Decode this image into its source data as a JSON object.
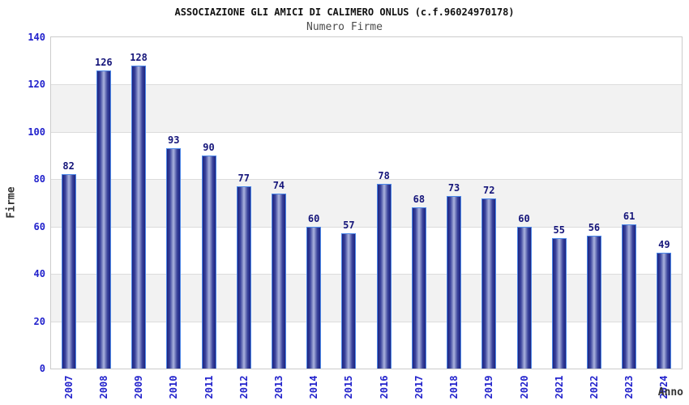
{
  "header": {
    "title": "ASSOCIAZIONE GLI AMICI DI CALIMERO ONLUS (c.f.96024970178)",
    "subtitle": "Numero Firme"
  },
  "chart_data": {
    "type": "bar",
    "title": "ASSOCIAZIONE GLI AMICI DI CALIMERO ONLUS (c.f.96024970178)",
    "subtitle": "Numero Firme",
    "categories": [
      "2007",
      "2008",
      "2009",
      "2010",
      "2011",
      "2012",
      "2013",
      "2014",
      "2015",
      "2016",
      "2017",
      "2018",
      "2019",
      "2020",
      "2021",
      "2022",
      "2023",
      "2024"
    ],
    "values": [
      82,
      126,
      128,
      93,
      90,
      77,
      74,
      60,
      57,
      78,
      68,
      73,
      72,
      60,
      55,
      56,
      61,
      49
    ],
    "xlabel": "Anno",
    "ylabel": "Firme",
    "ylim": [
      0,
      140
    ],
    "ytick_step": 20,
    "yticks": [
      0,
      20,
      40,
      60,
      80,
      100,
      120,
      140
    ],
    "grid": true,
    "legend_position": "none",
    "bands": "alternating gray every 20 units (20-40, 60-80, 100-120)",
    "colors": {
      "tick_label": "#2222cc",
      "value_label": "#15157a",
      "bar_edge": "#4d88e8",
      "bar_dark": "#1d2480",
      "bar_light": "#aab3dd",
      "band": "#f2f2f2",
      "plot_border": "#cccccc",
      "title": "#111111",
      "subtitle": "#4c4c4c",
      "axis_label": "#333333"
    }
  }
}
